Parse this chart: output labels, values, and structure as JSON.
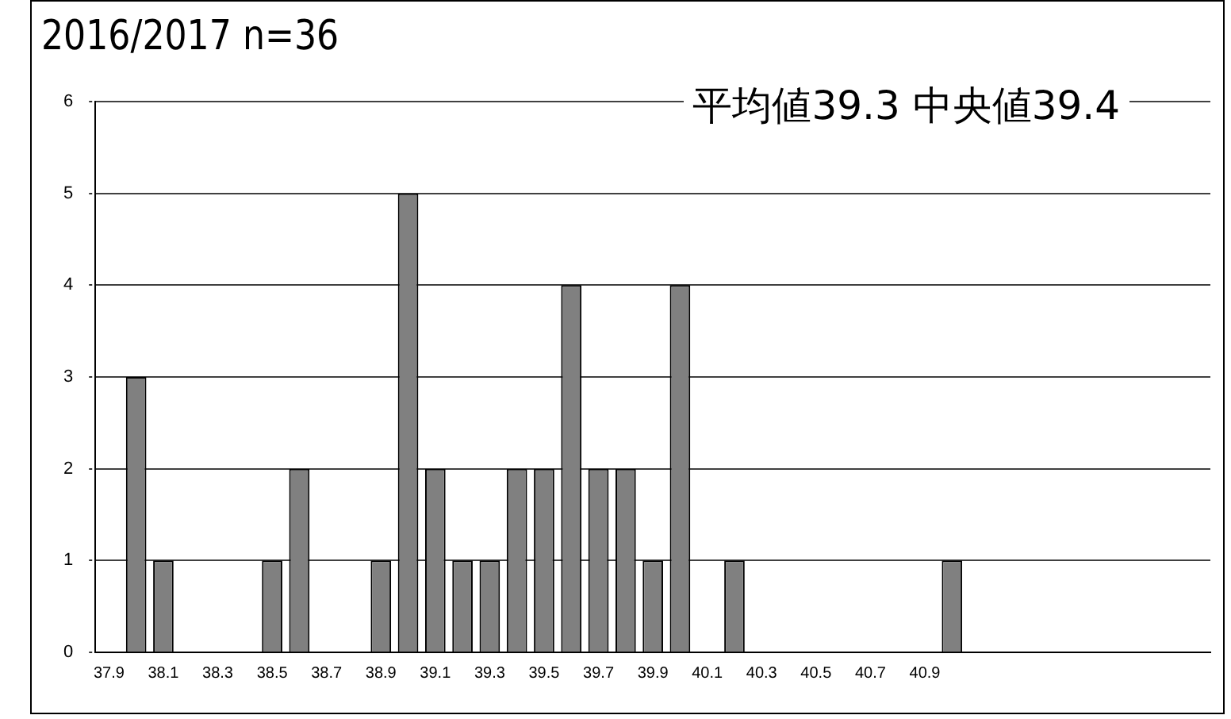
{
  "chart_data": {
    "type": "bar",
    "title": "2016/2017 n=36",
    "annotations": [
      "平均値39.3  中央値39.4"
    ],
    "categories": [
      "37.9",
      null,
      "38.1",
      null,
      "38.3",
      null,
      "38.5",
      null,
      "38.7",
      null,
      "38.9",
      null,
      "39.1",
      null,
      "39.3",
      null,
      "39.5",
      null,
      "39.7",
      null,
      "39.9",
      null,
      "40.1",
      null,
      "40.3",
      null,
      "40.5",
      null,
      "40.7",
      null,
      "40.9",
      null,
      null,
      null,
      null,
      null,
      null,
      null,
      null,
      null,
      null
    ],
    "values": [
      0,
      3,
      1,
      0,
      0,
      0,
      1,
      2,
      0,
      0,
      1,
      5,
      2,
      1,
      1,
      2,
      2,
      4,
      2,
      2,
      1,
      4,
      0,
      1,
      0,
      0,
      0,
      0,
      0,
      0,
      0,
      1,
      0,
      0,
      0,
      0,
      0,
      0,
      0,
      0,
      0
    ],
    "color": "#808080",
    "ylim": [
      0,
      6
    ],
    "yticks": [
      0,
      1,
      2,
      3,
      4,
      5,
      6
    ],
    "grid": "y",
    "legend": false
  }
}
